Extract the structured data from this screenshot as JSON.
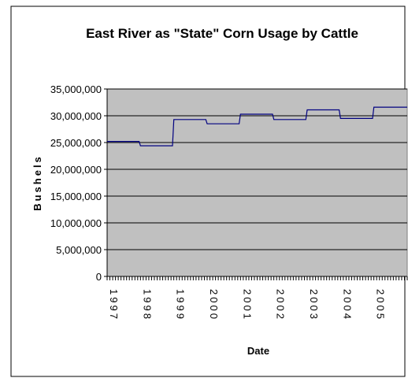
{
  "chart_data": {
    "type": "line",
    "title": "East River as \"State\" Corn Usage by Cattle",
    "xlabel": "Date",
    "ylabel": "Bushels",
    "ylim": [
      0,
      35000000
    ],
    "y_ticks": [
      0,
      5000000,
      10000000,
      15000000,
      20000000,
      25000000,
      30000000,
      35000000
    ],
    "y_tick_labels": [
      "0",
      "5,000,000",
      "10,000,000",
      "15,000,000",
      "20,000,000",
      "25,000,000",
      "30,000,000",
      "35,000,000"
    ],
    "x_tick_labels": [
      "1997",
      "1998",
      "1999",
      "2000",
      "2001",
      "2002",
      "2003",
      "2004",
      "2005"
    ],
    "xlim": [
      1997,
      2006
    ],
    "grid": true,
    "plot_background": "#c0c0c0",
    "line_color": "#000080",
    "series": [
      {
        "x": [
          1997.0,
          1997.96,
          1998.0,
          1998.96,
          1999.0,
          1999.96,
          2000.0,
          2000.96,
          2001.0,
          2001.96,
          2002.0,
          2002.96,
          2003.0,
          2003.96,
          2004.0,
          2004.96,
          2005.0,
          2006.0
        ],
        "values": [
          25200000,
          25200000,
          24400000,
          24400000,
          29300000,
          29300000,
          28500000,
          28500000,
          30300000,
          30300000,
          29300000,
          29300000,
          31100000,
          31100000,
          29500000,
          29500000,
          31600000,
          31600000
        ]
      }
    ]
  }
}
